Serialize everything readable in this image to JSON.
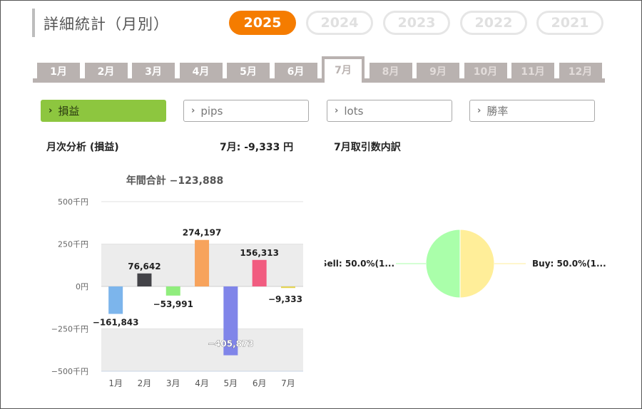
{
  "header": {
    "title": "詳細統計（月別）"
  },
  "years": [
    {
      "label": "2025",
      "active": true
    },
    {
      "label": "2024",
      "active": false
    },
    {
      "label": "2023",
      "active": false
    },
    {
      "label": "2022",
      "active": false
    },
    {
      "label": "2021",
      "active": false
    }
  ],
  "months": {
    "tabs": [
      "1月",
      "2月",
      "3月",
      "4月",
      "5月",
      "6月",
      "7月",
      "8月",
      "9月",
      "10月",
      "11月",
      "12月"
    ],
    "active_index": 6
  },
  "metrics": [
    {
      "label": "損益",
      "active": true
    },
    {
      "label": "pips",
      "active": false
    },
    {
      "label": "lots",
      "active": false
    },
    {
      "label": "勝率",
      "active": false
    }
  ],
  "analysis": {
    "title": "月次分析 (損益)",
    "month_summary": "7月:  -9,333 円",
    "breakdown_title": "7月取引数内訳"
  },
  "chart_data": [
    {
      "type": "bar",
      "title": "年間合計 −123,888",
      "categories": [
        "1月",
        "2月",
        "3月",
        "4月",
        "5月",
        "6月",
        "7月"
      ],
      "values": [
        -161843,
        76642,
        -53991,
        274197,
        -405873,
        156313,
        -9333
      ],
      "value_labels": [
        "−161,843",
        "76,642",
        "−53,991",
        "274,197",
        "−405,873",
        "156,313",
        "−9,333"
      ],
      "colors": [
        "#7cb5ec",
        "#434348",
        "#90ed7d",
        "#f7a35c",
        "#8085e9",
        "#f15c80",
        "#e4d354"
      ],
      "ylim": [
        -500000,
        500000
      ],
      "yticks": [
        {
          "value": 500000,
          "label": "500千円"
        },
        {
          "value": 250000,
          "label": "250千円"
        },
        {
          "value": 0,
          "label": "0円"
        },
        {
          "value": -250000,
          "label": "−250千円"
        },
        {
          "value": -500000,
          "label": "−500千円"
        }
      ],
      "plot_band_color": "#ececec",
      "legend": "none"
    },
    {
      "type": "pie",
      "labels": [
        "Sell: 50.0%(1...",
        "Buy: 50.0%(1..."
      ],
      "values": [
        50.0,
        50.0
      ],
      "colors": [
        "#aaffaa",
        "#ffee99"
      ]
    }
  ]
}
